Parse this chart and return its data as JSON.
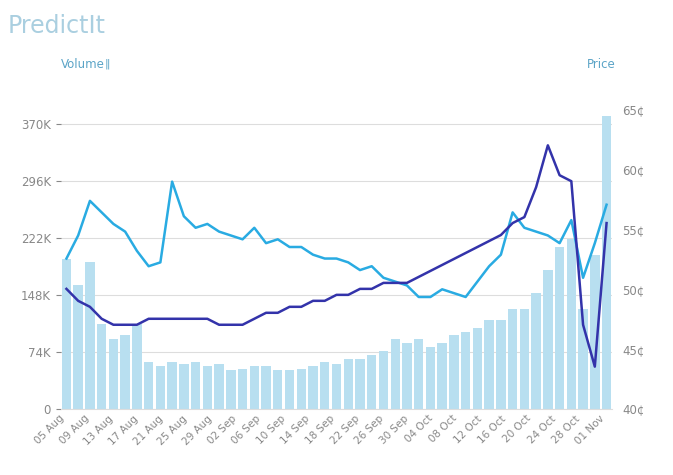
{
  "title": "PredictIt",
  "xlabel_left": "Volume",
  "xlabel_right": "Price",
  "bg_color": "#ffffff",
  "bar_color": "#b8dff0",
  "cyan_line_color": "#29abe2",
  "dark_blue_color": "#3333aa",
  "x_labels": [
    "05 Aug",
    "09 Aug",
    "13 Aug",
    "17 Aug",
    "21 Aug",
    "25 Aug",
    "29 Aug",
    "02 Sep",
    "06 Sep",
    "10 Sep",
    "14 Sep",
    "18 Sep",
    "22 Sep",
    "26 Sep",
    "30 Sep",
    "04 Oct",
    "08 Oct",
    "12 Oct",
    "16 Oct",
    "20 Oct",
    "24 Oct",
    "28 Oct",
    "01 Nov"
  ],
  "volume_bars": [
    195000,
    160000,
    190000,
    110000,
    90000,
    95000,
    110000,
    60000,
    55000,
    60000,
    58000,
    60000,
    55000,
    58000,
    50000,
    52000,
    55000,
    55000,
    50000,
    50000,
    52000,
    55000,
    60000,
    58000,
    65000,
    65000,
    70000,
    75000,
    90000,
    85000,
    90000,
    80000,
    85000,
    95000,
    100000,
    105000,
    115000,
    115000,
    130000,
    130000,
    150000,
    180000,
    210000,
    220000,
    130000,
    200000,
    380000
  ],
  "cyan_line": [
    195000,
    225000,
    270000,
    255000,
    240000,
    230000,
    205000,
    185000,
    190000,
    295000,
    250000,
    235000,
    240000,
    230000,
    225000,
    220000,
    235000,
    215000,
    220000,
    210000,
    210000,
    200000,
    195000,
    195000,
    190000,
    180000,
    185000,
    170000,
    165000,
    160000,
    145000,
    145000,
    155000,
    150000,
    145000,
    165000,
    185000,
    200000,
    255000,
    235000,
    230000,
    225000,
    215000,
    245000,
    170000,
    215000,
    265000
  ],
  "price_line": [
    50.0,
    49.0,
    48.5,
    47.5,
    47.0,
    47.0,
    47.0,
    47.5,
    47.5,
    47.5,
    47.5,
    47.5,
    47.5,
    47.0,
    47.0,
    47.0,
    47.5,
    48.0,
    48.0,
    48.5,
    48.5,
    49.0,
    49.0,
    49.5,
    49.5,
    50.0,
    50.0,
    50.5,
    50.5,
    50.5,
    51.0,
    51.5,
    52.0,
    52.5,
    53.0,
    53.5,
    54.0,
    54.5,
    55.5,
    56.0,
    58.5,
    62.0,
    59.5,
    59.0,
    47.0,
    43.5,
    55.5
  ],
  "ylim_left": [
    0,
    420000
  ],
  "ylim_right": [
    40,
    67
  ],
  "left_yticks": [
    0,
    74000,
    148000,
    222000,
    296000,
    370000
  ],
  "left_ytick_labels": [
    "0",
    "74K",
    "148K",
    "222K",
    "296K",
    "370K"
  ],
  "right_yticks": [
    40,
    45,
    50,
    55,
    60,
    65
  ],
  "right_ytick_labels": [
    "40¢",
    "45¢",
    "50¢",
    "55¢",
    "60¢",
    "65¢"
  ],
  "label_color": "#5ba4c7",
  "axis_color": "#dddddd",
  "tick_color": "#888888",
  "title_color": "#aacfe0"
}
